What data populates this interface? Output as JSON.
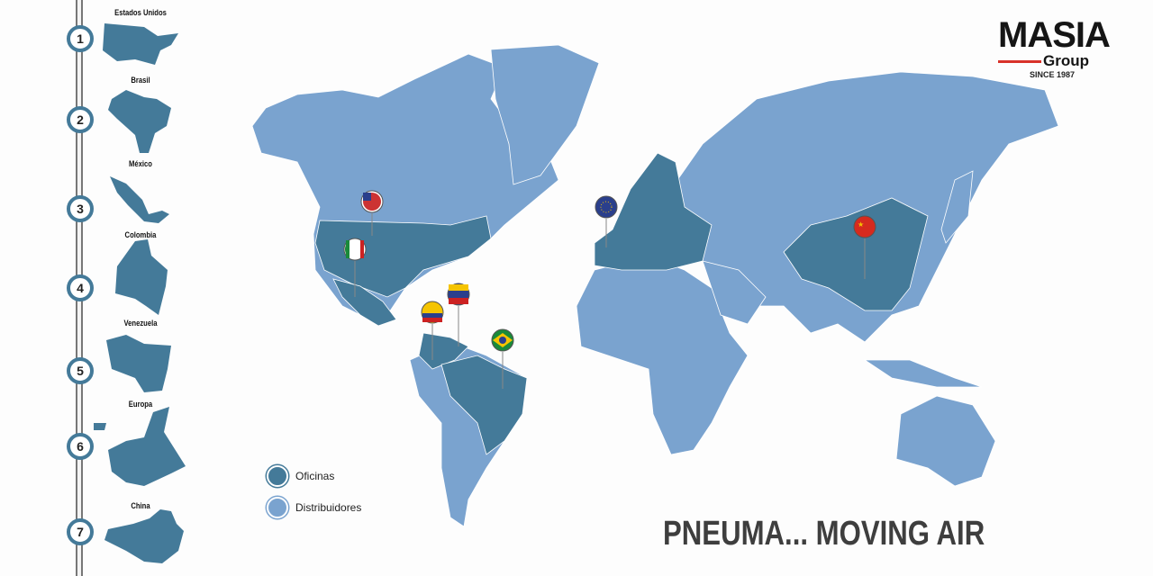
{
  "sidebar": {
    "items": [
      {
        "num": "1",
        "label": "Estados Unidos"
      },
      {
        "num": "2",
        "label": "Brasil"
      },
      {
        "num": "3",
        "label": "México"
      },
      {
        "num": "4",
        "label": "Colombia"
      },
      {
        "num": "5",
        "label": "Venezuela"
      },
      {
        "num": "6",
        "label": "Europa"
      },
      {
        "num": "7",
        "label": "China"
      }
    ]
  },
  "legend": {
    "offices": "Oficinas",
    "distributors": "Distribuidores"
  },
  "colors": {
    "offices": "#447a99",
    "distributors": "#7aa3cf",
    "accent": "#d8322a"
  },
  "logo": {
    "name": "MASIA",
    "sub": "Group",
    "since": "SINCE 1987"
  },
  "slogan": "PNEUMA... MOVING AIR",
  "pins": [
    {
      "country": "Estados Unidos",
      "flag": "us-flag-icon"
    },
    {
      "country": "México",
      "flag": "mexico-flag-icon"
    },
    {
      "country": "Venezuela",
      "flag": "venezuela-flag-icon"
    },
    {
      "country": "Colombia",
      "flag": "colombia-flag-icon"
    },
    {
      "country": "Brasil",
      "flag": "brazil-flag-icon"
    },
    {
      "country": "Europa",
      "flag": "eu-flag-icon"
    },
    {
      "country": "China",
      "flag": "china-flag-icon"
    }
  ]
}
